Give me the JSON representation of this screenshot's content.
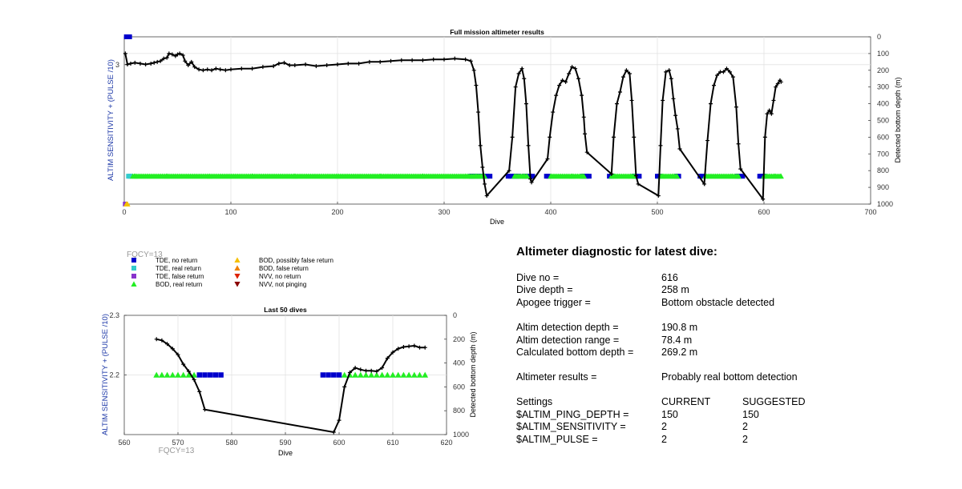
{
  "top_chart": {
    "title": "Full mission altimeter results",
    "xlabel": "Dive",
    "ylabel_left": "ALTIM SENSITIVITY + (PULSE /10)",
    "ylabel_right": "Detected bottom depth (m)",
    "xticks": [
      "0",
      "100",
      "200",
      "300",
      "400",
      "500",
      "600",
      "700"
    ],
    "yticks_left": [
      "3"
    ],
    "yticks_right": [
      "0",
      "100",
      "200",
      "300",
      "400",
      "500",
      "600",
      "700",
      "800",
      "900",
      "1000"
    ]
  },
  "bottom_chart": {
    "title": "Last 50 dives",
    "xlabel": "Dive",
    "ylabel_left": "ALTIM SENSITIVITY + (PULSE /10)",
    "ylabel_right": "Detected bottom depth (m)",
    "xticks": [
      "560",
      "570",
      "580",
      "590",
      "600",
      "610",
      "620"
    ],
    "yticks_left": [
      "2.3",
      "2.2"
    ],
    "yticks_right": [
      "0",
      "200",
      "400",
      "600",
      "800",
      "1000"
    ],
    "fqcy_label": "FQCY=13"
  },
  "legend": {
    "fqcy_label": "FQCY=13",
    "items": [
      {
        "label": "TDE, no return",
        "color": "#0000cc",
        "marker": "square"
      },
      {
        "label": "TDE, real return",
        "color": "#33cccc",
        "marker": "square"
      },
      {
        "label": "TDE, false return",
        "color": "#8833cc",
        "marker": "square"
      },
      {
        "label": "BOD, real return",
        "color": "#22ee22",
        "marker": "triangle-up"
      },
      {
        "label": "BOD, possibly false return",
        "color": "#f5c000",
        "marker": "triangle-up"
      },
      {
        "label": "BOD, false return",
        "color": "#f08000",
        "marker": "triangle-up"
      },
      {
        "label": "NVV, no return",
        "color": "#dd2200",
        "marker": "triangle-down"
      },
      {
        "label": "NVV, not pinging",
        "color": "#8b0000",
        "marker": "triangle-down"
      }
    ]
  },
  "diagnostic": {
    "title": "Altimeter diagnostic for latest dive:",
    "dive_no": {
      "label": "Dive no =",
      "value": "616"
    },
    "dive_depth": {
      "label": "Dive depth =",
      "value": "258 m"
    },
    "apogee": {
      "label": "Apogee trigger =",
      "value": "Bottom obstacle detected"
    },
    "detect_depth": {
      "label": "Altim detection depth =",
      "value": "190.8 m"
    },
    "detect_range": {
      "label": "Altim detection range =",
      "value": "78.4 m"
    },
    "bottom_depth": {
      "label": "Calculated bottom depth =",
      "value": "269.2 m"
    },
    "results": {
      "label": "Altimeter results =",
      "value": "Probably real bottom detection"
    },
    "settings": {
      "label": "Settings",
      "current": "CURRENT",
      "suggested": "SUGGESTED"
    },
    "ping_depth": {
      "label": "$ALTIM_PING_DEPTH =",
      "current": "150",
      "suggested": "150"
    },
    "sensitivity": {
      "label": "$ALTIM_SENSITIVITY =",
      "current": "2",
      "suggested": "2"
    },
    "pulse": {
      "label": "$ALTIM_PULSE =",
      "current": "2",
      "suggested": "2"
    }
  },
  "chart_data": [
    {
      "type": "line",
      "title": "Full mission altimeter results",
      "xlabel": "Dive",
      "ylabel": "ALTIM SENSITIVITY + (PULSE /10)",
      "ylabel_right": "Detected bottom depth (m)",
      "xlim": [
        0,
        700
      ],
      "ylim_right": [
        1000,
        0
      ],
      "grid": true,
      "series": [
        {
          "name": "Detected bottom depth",
          "axis": "right",
          "x": [
            1,
            3,
            6,
            10,
            15,
            20,
            25,
            28,
            31,
            34,
            37,
            40,
            42,
            45,
            48,
            50,
            52,
            55,
            57,
            60,
            63,
            66,
            70,
            74,
            78,
            82,
            86,
            90,
            95,
            100,
            110,
            120,
            130,
            140,
            145,
            150,
            155,
            160,
            170,
            180,
            190,
            200,
            210,
            220,
            230,
            240,
            250,
            260,
            270,
            280,
            290,
            300,
            310,
            320,
            325,
            328,
            330,
            332,
            334,
            336,
            338,
            340,
            361,
            364,
            367,
            370,
            373,
            375,
            377,
            379,
            381,
            382,
            397,
            399,
            402,
            405,
            408,
            411,
            414,
            417,
            420,
            423,
            426,
            429,
            431,
            432,
            434,
            457,
            459,
            462,
            465,
            468,
            471,
            474,
            476,
            478,
            480,
            482,
            501,
            503,
            505,
            508,
            511,
            513,
            515,
            517,
            519,
            521,
            544,
            547,
            550,
            553,
            556,
            559,
            562,
            565,
            568,
            571,
            574,
            576,
            578,
            599,
            601,
            603,
            605,
            607,
            609,
            611,
            613,
            615,
            616
          ],
          "y": [
            100,
            165,
            160,
            155,
            160,
            165,
            160,
            155,
            150,
            145,
            130,
            125,
            100,
            105,
            115,
            105,
            100,
            110,
            145,
            170,
            150,
            180,
            195,
            200,
            195,
            200,
            190,
            195,
            200,
            195,
            190,
            190,
            180,
            175,
            160,
            155,
            170,
            170,
            165,
            175,
            170,
            165,
            160,
            160,
            150,
            150,
            145,
            140,
            140,
            140,
            135,
            135,
            130,
            135,
            145,
            200,
            290,
            450,
            650,
            780,
            880,
            950,
            800,
            600,
            300,
            220,
            190,
            250,
            400,
            650,
            850,
            870,
            730,
            600,
            450,
            350,
            290,
            260,
            270,
            220,
            180,
            190,
            250,
            350,
            480,
            580,
            690,
            820,
            600,
            400,
            330,
            240,
            200,
            220,
            380,
            600,
            830,
            880,
            950,
            650,
            380,
            210,
            200,
            250,
            370,
            470,
            550,
            670,
            880,
            620,
            400,
            290,
            230,
            210,
            210,
            190,
            210,
            240,
            420,
            640,
            790,
            970,
            600,
            460,
            440,
            460,
            380,
            300,
            280,
            260,
            270
          ]
        },
        {
          "name": "TDE, no return",
          "axis": "left",
          "x": [
            2,
            3,
            4,
            5,
            325,
            326,
            327,
            330,
            332,
            335,
            338,
            340,
            343,
            360,
            362,
            364,
            366,
            368,
            370,
            375,
            378,
            380,
            383,
            396,
            398,
            430,
            432,
            434,
            436,
            455,
            457,
            478,
            480,
            483,
            500,
            502,
            518,
            520,
            540,
            542,
            575,
            577,
            580,
            596,
            598,
            600
          ],
          "y": [
            3.2,
            3.2,
            3.2,
            3.2,
            2.2,
            2.2,
            2.2,
            2.2,
            2.2,
            2.2,
            2.2,
            2.2,
            2.2,
            2.2,
            2.2,
            2.2,
            2.2,
            2.2,
            2.2,
            2.2,
            2.2,
            2.2,
            2.2,
            2.2,
            2.2,
            2.2,
            2.2,
            2.2,
            2.2,
            2.2,
            2.2,
            2.2,
            2.2,
            2.2,
            2.2,
            2.2,
            2.2,
            2.2,
            2.2,
            2.2,
            2.2,
            2.2,
            2.2,
            2.2,
            2.2,
            2.2
          ]
        },
        {
          "name": "TDE, real return",
          "axis": "left",
          "x": [
            4,
            5,
            6
          ],
          "y": [
            2.2,
            2.2,
            2.2
          ]
        },
        {
          "name": "TDE, false return",
          "axis": "left",
          "x": [
            1
          ],
          "y": [
            2.0
          ]
        },
        {
          "name": "BOD, real return",
          "axis": "left",
          "x": [
            10,
            40,
            80,
            120,
            160,
            200,
            240,
            280,
            320,
            330,
            366,
            375,
            400,
            420,
            430,
            460,
            475,
            505,
            515,
            545,
            570,
            600,
            610,
            616
          ],
          "y": [
            2.2,
            2.2,
            2.2,
            2.2,
            2.2,
            2.2,
            2.2,
            2.2,
            2.2,
            2.2,
            2.2,
            2.2,
            2.2,
            2.2,
            2.2,
            2.2,
            2.2,
            2.2,
            2.2,
            2.2,
            2.2,
            2.2,
            2.2,
            2.2
          ]
        },
        {
          "name": "BOD, possibly false return",
          "axis": "left",
          "x": [
            2,
            3
          ],
          "y": [
            2.0,
            2.0
          ]
        }
      ]
    },
    {
      "type": "line",
      "title": "Last 50 dives",
      "xlabel": "Dive",
      "ylabel": "ALTIM SENSITIVITY + (PULSE /10)",
      "ylabel_right": "Detected bottom depth (m)",
      "xlim": [
        560,
        620
      ],
      "ylim": [
        2.1,
        2.3
      ],
      "ylim_right": [
        1000,
        0
      ],
      "grid": true,
      "series": [
        {
          "name": "Detected bottom depth",
          "axis": "right",
          "x": [
            566,
            567,
            568,
            569,
            570,
            571,
            572,
            573,
            574,
            575,
            599,
            600,
            601,
            602,
            603,
            604,
            605,
            606,
            607,
            608,
            609,
            610,
            611,
            612,
            613,
            614,
            615,
            616
          ],
          "y": [
            200,
            210,
            240,
            280,
            330,
            410,
            470,
            540,
            640,
            790,
            980,
            880,
            600,
            480,
            440,
            455,
            465,
            465,
            470,
            440,
            360,
            310,
            280,
            265,
            260,
            255,
            270,
            270
          ]
        },
        {
          "name": "BOD, real return",
          "axis": "left",
          "x": [
            566,
            567,
            568,
            569,
            570,
            571,
            572,
            573,
            601,
            602,
            603,
            604,
            605,
            606,
            607,
            608,
            609,
            610,
            611,
            612,
            613,
            614,
            615,
            616
          ],
          "y": [
            2.2,
            2.2,
            2.2,
            2.2,
            2.2,
            2.2,
            2.2,
            2.2,
            2.2,
            2.2,
            2.2,
            2.2,
            2.2,
            2.2,
            2.2,
            2.2,
            2.2,
            2.2,
            2.2,
            2.2,
            2.2,
            2.2,
            2.2,
            2.2
          ]
        },
        {
          "name": "TDE, no return",
          "axis": "left",
          "x": [
            574,
            575,
            576,
            577,
            578,
            597,
            598,
            599,
            600
          ],
          "y": [
            2.2,
            2.2,
            2.2,
            2.2,
            2.2,
            2.2,
            2.2,
            2.2,
            2.2
          ]
        }
      ]
    }
  ]
}
